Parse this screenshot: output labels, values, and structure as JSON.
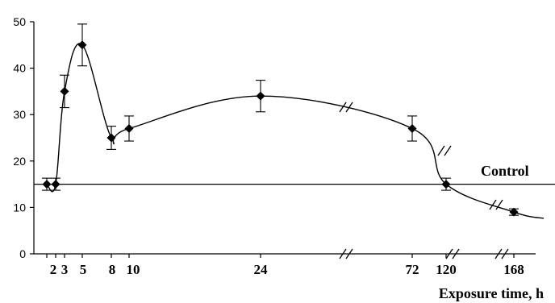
{
  "chart_data": {
    "type": "line",
    "title": "",
    "xlabel": "Exposure time, h",
    "ylabel": "",
    "ylim": [
      0,
      50
    ],
    "yticks": [
      0,
      10,
      20,
      30,
      40,
      50
    ],
    "x_tick_labels": [
      "2",
      "3",
      "5",
      "8",
      "10",
      "24",
      "72",
      "120",
      "168"
    ],
    "axis_breaks": "broken x axis (//) between 24 and 72, between 72 and 120, and between 120 and 168",
    "grid": false,
    "legend": "none",
    "series": [
      {
        "points": [
          {
            "x": 1,
            "y": 15,
            "err": 1.3
          },
          {
            "x": 2,
            "y": 15,
            "err": 1.3
          },
          {
            "x": 3,
            "y": 35,
            "err": 3.5
          },
          {
            "x": 5,
            "y": 45,
            "err": 4.5
          },
          {
            "x": 8,
            "y": 25,
            "err": 2.5
          },
          {
            "x": 10,
            "y": 27,
            "err": 2.7
          },
          {
            "x": 24,
            "y": 34,
            "err": 3.4
          },
          {
            "x": 72,
            "y": 27,
            "err": 2.7
          },
          {
            "x": 120,
            "y": 15,
            "err": 1.3
          },
          {
            "x": 168,
            "y": 9,
            "err": 0.7
          }
        ]
      }
    ],
    "control_line": {
      "label": "Control",
      "y": 15
    }
  }
}
